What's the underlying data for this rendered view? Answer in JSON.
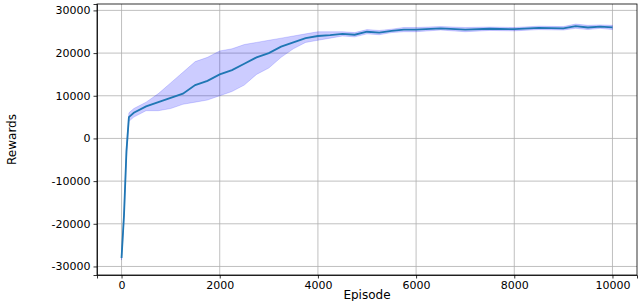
{
  "chart_data": {
    "type": "line",
    "x_label": "Episode",
    "y_label": "Rewards",
    "x": [
      0,
      50,
      100,
      150,
      250,
      500,
      750,
      1000,
      1250,
      1500,
      1750,
      2000,
      2250,
      2500,
      2750,
      3000,
      3250,
      3500,
      3750,
      4000,
      4250,
      4500,
      4750,
      5000,
      5250,
      5500,
      5750,
      6000,
      6500,
      7000,
      7500,
      8000,
      8500,
      9000,
      9250,
      9500,
      9750,
      10000
    ],
    "series": [
      {
        "color": "#1f77b4",
        "values": [
          -28000,
          -18000,
          -3000,
          5000,
          6000,
          7500,
          8500,
          9500,
          10500,
          12500,
          13500,
          15000,
          16000,
          17500,
          19000,
          20000,
          21500,
          22500,
          23500,
          24000,
          24200,
          24500,
          24300,
          25000,
          24800,
          25200,
          25500,
          25500,
          25800,
          25500,
          25700,
          25600,
          25900,
          25800,
          26300,
          26000,
          26200,
          26000
        ],
        "lower": [
          -28500,
          -19000,
          -4500,
          4000,
          5000,
          6500,
          6500,
          7000,
          8000,
          8500,
          9000,
          10000,
          11000,
          12500,
          15000,
          16500,
          19000,
          21000,
          22500,
          23000,
          23500,
          24000,
          23800,
          24500,
          24300,
          24800,
          25000,
          25000,
          25400,
          25000,
          25300,
          25200,
          25500,
          25400,
          25800,
          25500,
          25800,
          25500
        ],
        "upper": [
          -27500,
          -17000,
          -1500,
          6000,
          7000,
          8500,
          10500,
          13000,
          15500,
          18000,
          19000,
          20500,
          21000,
          22000,
          22500,
          23000,
          23500,
          24000,
          24500,
          25000,
          25000,
          25000,
          24800,
          25500,
          25300,
          25600,
          26000,
          26000,
          26200,
          26000,
          26100,
          26000,
          26300,
          26200,
          26800,
          26500,
          26600,
          26500
        ]
      }
    ],
    "xlim": [
      -500,
      10500
    ],
    "ylim": [
      -32000,
      31500
    ],
    "xticks": [
      0,
      2000,
      4000,
      6000,
      8000,
      10000
    ],
    "yticks": [
      -30000,
      -20000,
      -10000,
      0,
      10000,
      20000,
      30000
    ],
    "grid": true
  }
}
